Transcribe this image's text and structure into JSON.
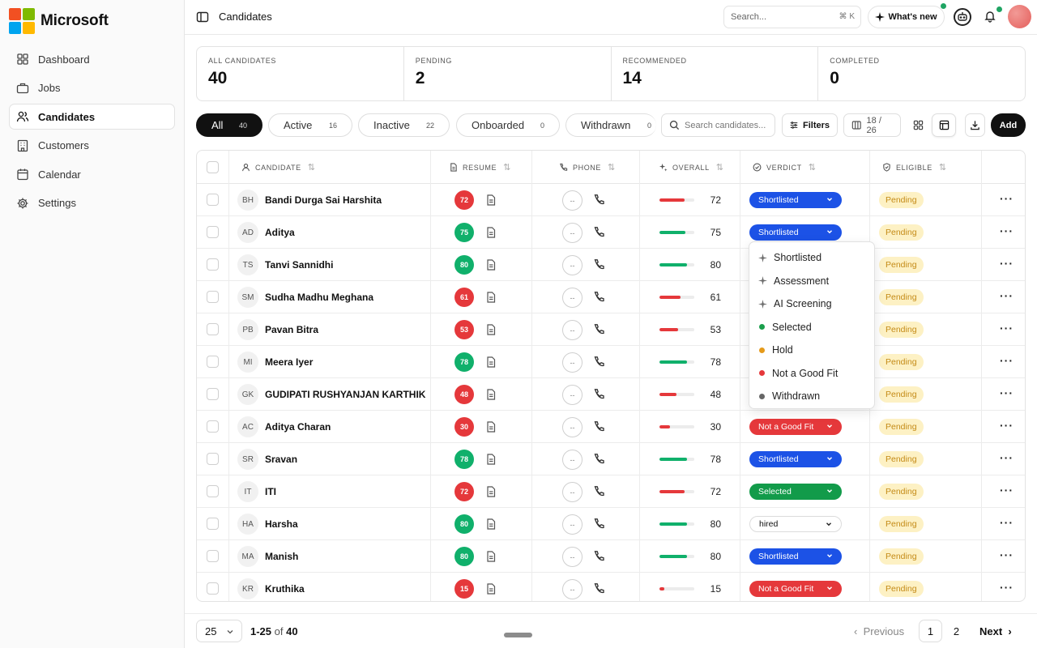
{
  "brand": {
    "name": "Microsoft",
    "logo_colors": [
      "#f25022",
      "#7fba00",
      "#00a4ef",
      "#ffb900"
    ]
  },
  "sidebar": {
    "items": [
      {
        "label": "Dashboard",
        "icon": "dashboard-icon",
        "active": false
      },
      {
        "label": "Jobs",
        "icon": "briefcase-icon",
        "active": false
      },
      {
        "label": "Candidates",
        "icon": "users-icon",
        "active": true
      },
      {
        "label": "Customers",
        "icon": "building-icon",
        "active": false
      },
      {
        "label": "Calendar",
        "icon": "calendar-icon",
        "active": false
      },
      {
        "label": "Settings",
        "icon": "gear-icon",
        "active": false
      }
    ]
  },
  "header": {
    "title": "Candidates",
    "search_placeholder": "Search...",
    "search_shortcut": "⌘ K",
    "whats_new": "What's new"
  },
  "stats": [
    {
      "label": "ALL CANDIDATES",
      "value": "40"
    },
    {
      "label": "PENDING",
      "value": "2"
    },
    {
      "label": "RECOMMENDED",
      "value": "14"
    },
    {
      "label": "COMPLETED",
      "value": "0"
    }
  ],
  "tabs": [
    {
      "label": "All",
      "count": "40",
      "active": true
    },
    {
      "label": "Active",
      "count": "16",
      "active": false
    },
    {
      "label": "Inactive",
      "count": "22",
      "active": false
    },
    {
      "label": "Onboarded",
      "count": "0",
      "active": false
    },
    {
      "label": "Withdrawn",
      "count": "0",
      "active": false
    }
  ],
  "toolbar": {
    "search_placeholder": "Search candidates...",
    "filters_label": "Filters",
    "columns_label": "18 / 26",
    "add_label": "Add"
  },
  "columns": [
    "CANDIDATE",
    "RESUME",
    "PHONE",
    "OVERALL",
    "VERDICT",
    "ELIGIBLE"
  ],
  "colors": {
    "score_high": "#10b06b",
    "score_low": "#e5383b",
    "verdict_shortlisted": "#1c52e6",
    "verdict_not_fit": "#e5383b",
    "verdict_selected": "#129b4a",
    "eligible_pending_bg": "#fdf1c4",
    "eligible_pending_text": "#c48a16"
  },
  "phone_placeholder": "--",
  "rows": [
    {
      "initials": "BH",
      "name": "Bandi Durga Sai Harshita",
      "score": "72",
      "verdict": "Shortlisted",
      "eligible": "Pending"
    },
    {
      "initials": "AD",
      "name": "Aditya",
      "score": "75",
      "verdict": "Shortlisted",
      "eligible": "Pending"
    },
    {
      "initials": "TS",
      "name": "Tanvi Sannidhi",
      "score": "80",
      "verdict": "",
      "eligible": "Pending"
    },
    {
      "initials": "SM",
      "name": "Sudha Madhu Meghana",
      "score": "61",
      "verdict": "",
      "eligible": "Pending"
    },
    {
      "initials": "PB",
      "name": "Pavan Bitra",
      "score": "53",
      "verdict": "",
      "eligible": "Pending"
    },
    {
      "initials": "MI",
      "name": "Meera Iyer",
      "score": "78",
      "verdict": "",
      "eligible": "Pending"
    },
    {
      "initials": "GK",
      "name": "GUDIPATI RUSHYANJAN KARTHIK",
      "score": "48",
      "verdict": "",
      "eligible": "Pending"
    },
    {
      "initials": "AC",
      "name": "Aditya Charan",
      "score": "30",
      "verdict": "Not a Good Fit",
      "eligible": "Pending"
    },
    {
      "initials": "SR",
      "name": "Sravan",
      "score": "78",
      "verdict": "Shortlisted",
      "eligible": "Pending"
    },
    {
      "initials": "IT",
      "name": "ITI",
      "score": "72",
      "verdict": "Selected",
      "eligible": "Pending"
    },
    {
      "initials": "HA",
      "name": "Harsha",
      "score": "80",
      "verdict": "hired",
      "eligible": "Pending"
    },
    {
      "initials": "MA",
      "name": "Manish",
      "score": "80",
      "verdict": "Shortlisted",
      "eligible": "Pending"
    },
    {
      "initials": "KR",
      "name": "Kruthika",
      "score": "15",
      "verdict": "Not a Good Fit",
      "eligible": "Pending"
    }
  ],
  "verdict_menu": [
    {
      "label": "Shortlisted",
      "marker": "sparkle",
      "color": "#6b6b6b"
    },
    {
      "label": "Assessment",
      "marker": "sparkle",
      "color": "#6b6b6b"
    },
    {
      "label": "AI Screening",
      "marker": "sparkle",
      "color": "#6b6b6b"
    },
    {
      "label": "Selected",
      "marker": "dot",
      "color": "#1a9e4b"
    },
    {
      "label": "Hold",
      "marker": "dot",
      "color": "#e59a1a"
    },
    {
      "label": "Not a Good Fit",
      "marker": "dot",
      "color": "#e5383b"
    },
    {
      "label": "Withdrawn",
      "marker": "dot",
      "color": "#666666"
    }
  ],
  "pagination": {
    "per_page": "25",
    "range": "1-25",
    "of_label": "of",
    "total": "40",
    "previous": "Previous",
    "pages": [
      "1",
      "2"
    ],
    "current": "1",
    "next": "Next"
  }
}
